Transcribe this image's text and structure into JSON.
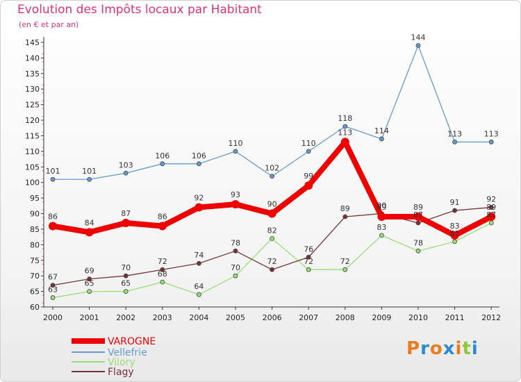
{
  "chart_data": {
    "type": "line",
    "title": "Evolution des Impôts locaux par Habitant",
    "subtitle": "(en € et par an)",
    "xlabel": "",
    "ylabel": "",
    "x": [
      "2000",
      "2001",
      "2002",
      "2003",
      "2004",
      "2005",
      "2006",
      "2007",
      "2008",
      "2009",
      "2010",
      "2011",
      "2012"
    ],
    "ylim": [
      60,
      145
    ],
    "yticks": [
      60,
      65,
      70,
      75,
      80,
      85,
      90,
      95,
      100,
      105,
      110,
      115,
      120,
      125,
      130,
      135,
      140,
      145
    ],
    "grid": false,
    "legend_position": "bottom-left",
    "series": [
      {
        "name": "VAROGNE",
        "color": "#ee0000",
        "values": [
          86,
          84,
          87,
          86,
          92,
          93,
          90,
          99,
          113,
          89,
          89,
          83,
          89
        ]
      },
      {
        "name": "Vellefrie",
        "color": "#6699cc",
        "values": [
          101,
          101,
          103,
          106,
          106,
          110,
          102,
          110,
          118,
          114,
          144,
          113,
          113
        ]
      },
      {
        "name": "Vilory",
        "color": "#99dd77",
        "values": [
          63,
          65,
          65,
          68,
          64,
          70,
          82,
          72,
          72,
          83,
          78,
          81,
          87
        ]
      },
      {
        "name": "Flagy",
        "color": "#773333",
        "values": [
          67,
          69,
          70,
          72,
          74,
          78,
          72,
          76,
          89,
          90,
          87,
          91,
          92
        ]
      }
    ]
  },
  "logo": {
    "text": "Proxiti",
    "letters": [
      "P",
      "r",
      "o",
      "x",
      "i",
      "t",
      "i"
    ],
    "colors": [
      "#e87c1e",
      "#2d8ad1",
      "#e87c1e",
      "#2d8ad1",
      "#e87c1e",
      "#8dc63f",
      "#2d8ad1"
    ]
  }
}
